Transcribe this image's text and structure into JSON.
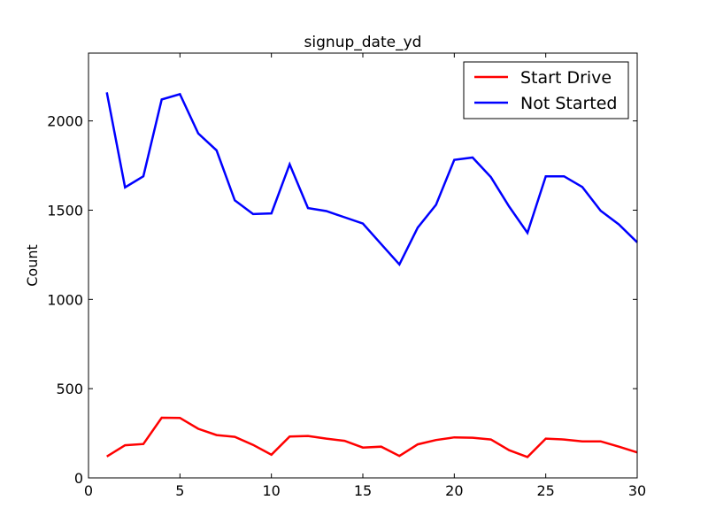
{
  "chart_data": {
    "type": "line",
    "title": "signup_date_yd",
    "xlabel": "",
    "ylabel": "Count",
    "xlim": [
      0,
      30
    ],
    "ylim": [
      0,
      2380
    ],
    "xticks": [
      0,
      5,
      10,
      15,
      20,
      25,
      30
    ],
    "yticks": [
      0,
      500,
      1000,
      1500,
      2000
    ],
    "grid": false,
    "legend_position": "top-right",
    "x": [
      1,
      2,
      3,
      4,
      5,
      6,
      7,
      8,
      9,
      10,
      11,
      12,
      13,
      14,
      15,
      16,
      17,
      18,
      19,
      20,
      21,
      22,
      23,
      24,
      25,
      26,
      27,
      28,
      29,
      30
    ],
    "series": [
      {
        "name": "Start Drive",
        "color": "#ff0000",
        "values": [
          120,
          183,
          190,
          337,
          336,
          275,
          240,
          230,
          185,
          130,
          232,
          235,
          220,
          208,
          170,
          175,
          123,
          188,
          212,
          227,
          225,
          215,
          155,
          117,
          220,
          215,
          205,
          205,
          175,
          143
        ]
      },
      {
        "name": "Not Started",
        "color": "#0000ff",
        "values": [
          2160,
          1628,
          1690,
          2120,
          2150,
          1930,
          1835,
          1555,
          1478,
          1482,
          1757,
          1512,
          1495,
          1460,
          1425,
          1310,
          1196,
          1402,
          1530,
          1782,
          1795,
          1685,
          1520,
          1373,
          1690,
          1690,
          1630,
          1497,
          1420,
          1320
        ]
      }
    ]
  }
}
